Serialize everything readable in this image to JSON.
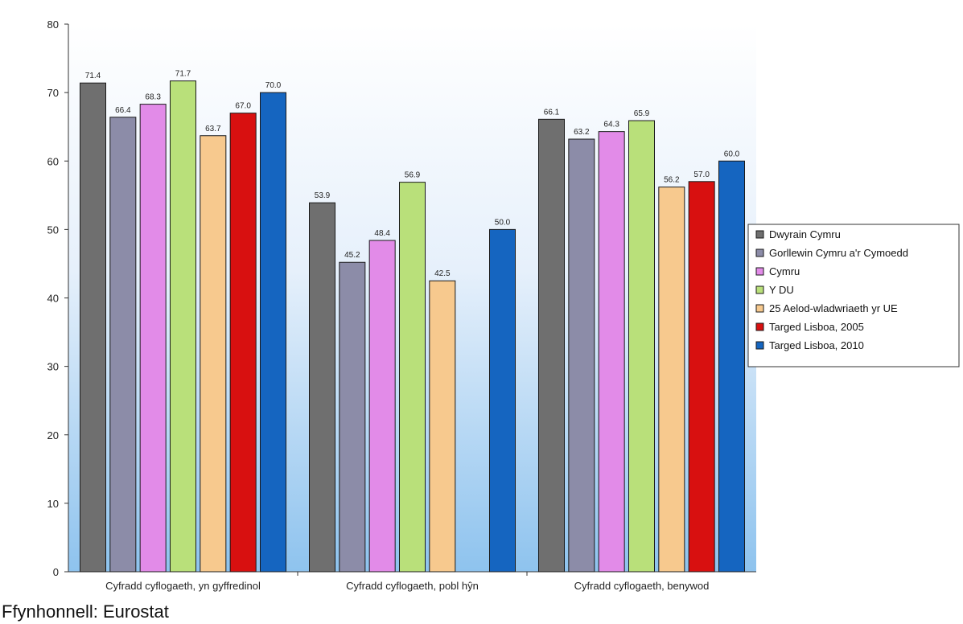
{
  "chart_data": {
    "type": "bar",
    "categories": [
      "Cyfradd cyflogaeth, yn gyffredinol",
      "Cyfradd cyflogaeth, pobl hŷn",
      "Cyfradd cyflogaeth, benywod"
    ],
    "series": [
      {
        "name": "Dwyrain Cymru",
        "color": "#6f6f6f",
        "values": [
          71.4,
          53.9,
          66.1
        ]
      },
      {
        "name": "Gorllewin Cymru a'r Cymoedd",
        "color": "#8c8ca8",
        "values": [
          66.4,
          45.2,
          63.2
        ]
      },
      {
        "name": "Cymru",
        "color": "#e28be8",
        "values": [
          68.3,
          48.4,
          64.3
        ]
      },
      {
        "name": "Y DU",
        "color": "#b9e07a",
        "values": [
          71.7,
          56.9,
          65.9
        ]
      },
      {
        "name": "25 Aelod-wladwriaeth yr UE",
        "color": "#f7c98e",
        "values": [
          63.7,
          42.5,
          56.2
        ]
      },
      {
        "name": "Targed Lisboa, 2005",
        "color": "#d81010",
        "values": [
          67.0,
          null,
          57.0
        ]
      },
      {
        "name": "Targed Lisboa, 2010",
        "color": "#1565c0",
        "values": [
          70.0,
          50.0,
          60.0
        ]
      }
    ],
    "ylim": [
      0,
      80
    ],
    "yticks": [
      0,
      10,
      20,
      30,
      40,
      50,
      60,
      70,
      80
    ],
    "xlabel": "",
    "ylabel": "",
    "legend_position": "right",
    "grid": false
  },
  "source": "Ffynhonnell: Eurostat"
}
